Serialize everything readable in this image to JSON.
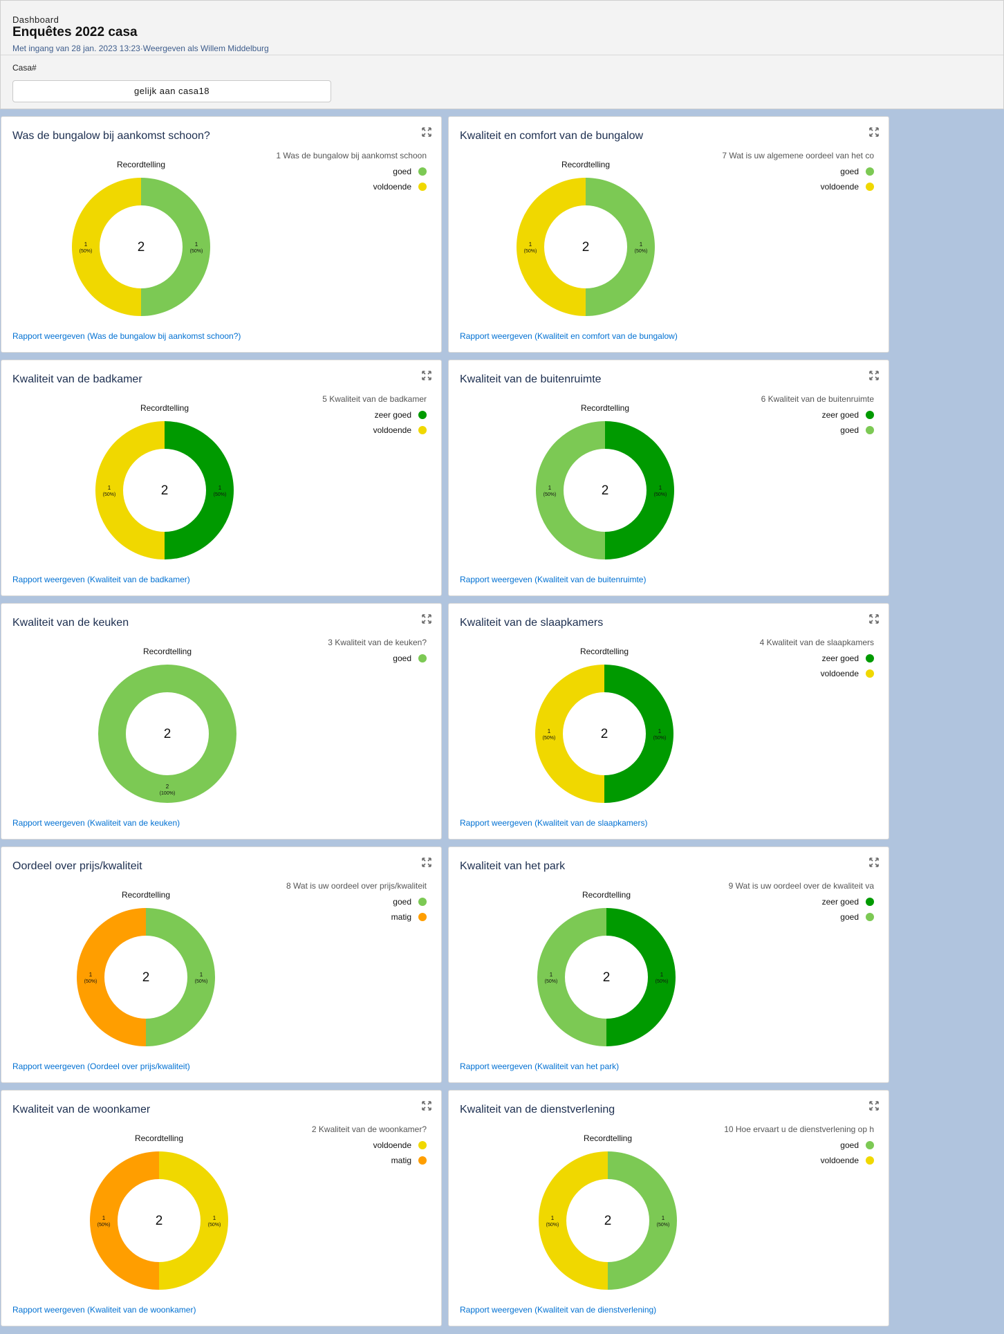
{
  "header": {
    "eyebrow": "Dashboard",
    "title": "Enquêtes 2022 casa",
    "subtitle": "Met ingang van 28 jan. 2023 13:23·Weergeven als Willem Middelburg"
  },
  "filter": {
    "label": "Casa#",
    "value": "gelijk aan casa18"
  },
  "colors": {
    "zeer goed": "#009a00",
    "goed": "#7cc954",
    "voldoende": "#f0d800",
    "matig": "#ff9e00"
  },
  "chart_data": [
    {
      "type": "donut",
      "title": "Was de bungalow bij aankomst schoon?",
      "measure": "Recordtelling",
      "legend_title": "1 Was de bungalow bij aankomst schoon",
      "total": "2",
      "slices": [
        {
          "name": "goed",
          "value": 1,
          "label": "1",
          "pct": "(50%)"
        },
        {
          "name": "voldoende",
          "value": 1,
          "label": "1",
          "pct": "(50%)"
        }
      ],
      "link": "Rapport weergeven (Was de bungalow bij aankomst schoon?)"
    },
    {
      "type": "donut",
      "title": "Kwaliteit en comfort van de bungalow",
      "measure": "Recordtelling",
      "legend_title": "7 Wat is uw  algemene oordeel van het co",
      "total": "2",
      "slices": [
        {
          "name": "goed",
          "value": 1,
          "label": "1",
          "pct": "(50%)"
        },
        {
          "name": "voldoende",
          "value": 1,
          "label": "1",
          "pct": "(50%)"
        }
      ],
      "link": "Rapport weergeven (Kwaliteit en comfort van de bungalow)"
    },
    {
      "type": "donut",
      "title": "Kwaliteit van de badkamer",
      "measure": "Recordtelling",
      "legend_title": "5 Kwaliteit van de badkamer",
      "total": "2",
      "slices": [
        {
          "name": "zeer goed",
          "value": 1,
          "label": "1",
          "pct": "(50%)"
        },
        {
          "name": "voldoende",
          "value": 1,
          "label": "1",
          "pct": "(50%)"
        }
      ],
      "link": "Rapport weergeven (Kwaliteit van de badkamer)"
    },
    {
      "type": "donut",
      "title": "Kwaliteit van de buitenruimte",
      "measure": "Recordtelling",
      "legend_title": "6 Kwaliteit van de buitenruimte",
      "total": "2",
      "slices": [
        {
          "name": "zeer goed",
          "value": 1,
          "label": "1",
          "pct": "(50%)"
        },
        {
          "name": "goed",
          "value": 1,
          "label": "1",
          "pct": "(50%)"
        }
      ],
      "link": "Rapport weergeven (Kwaliteit van de buitenruimte)"
    },
    {
      "type": "donut",
      "title": "Kwaliteit van de keuken",
      "measure": "Recordtelling",
      "legend_title": "3 Kwaliteit van de keuken?",
      "total": "2",
      "slices": [
        {
          "name": "goed",
          "value": 2,
          "label": "2",
          "pct": "(100%)"
        }
      ],
      "link": "Rapport weergeven (Kwaliteit van de keuken)"
    },
    {
      "type": "donut",
      "title": "Kwaliteit van de slaapkamers",
      "measure": "Recordtelling",
      "legend_title": "4 Kwaliteit van de slaapkamers",
      "total": "2",
      "slices": [
        {
          "name": "zeer goed",
          "value": 1,
          "label": "1",
          "pct": "(50%)"
        },
        {
          "name": "voldoende",
          "value": 1,
          "label": "1",
          "pct": "(50%)"
        }
      ],
      "link": "Rapport weergeven (Kwaliteit van de slaapkamers)"
    },
    {
      "type": "donut",
      "title": "Oordeel over prijs/kwaliteit",
      "measure": "Recordtelling",
      "legend_title": "8 Wat is uw oordeel over prijs/kwaliteit",
      "total": "2",
      "slices": [
        {
          "name": "goed",
          "value": 1,
          "label": "1",
          "pct": "(50%)"
        },
        {
          "name": "matig",
          "value": 1,
          "label": "1",
          "pct": "(50%)"
        }
      ],
      "link": "Rapport weergeven (Oordeel over prijs/kwaliteit)"
    },
    {
      "type": "donut",
      "title": "Kwaliteit van het park",
      "measure": "Recordtelling",
      "legend_title": "9 Wat is uw oordeel over de kwaliteit va",
      "total": "2",
      "slices": [
        {
          "name": "zeer goed",
          "value": 1,
          "label": "1",
          "pct": "(50%)"
        },
        {
          "name": "goed",
          "value": 1,
          "label": "1",
          "pct": "(50%)"
        }
      ],
      "link": "Rapport weergeven (Kwaliteit van het park)"
    },
    {
      "type": "donut",
      "title": "Kwaliteit van de woonkamer",
      "measure": "Recordtelling",
      "legend_title": "2 Kwaliteit van de woonkamer?",
      "total": "2",
      "slices": [
        {
          "name": "voldoende",
          "value": 1,
          "label": "1",
          "pct": "(50%)"
        },
        {
          "name": "matig",
          "value": 1,
          "label": "1",
          "pct": "(50%)"
        }
      ],
      "link": "Rapport weergeven (Kwaliteit van de woonkamer)"
    },
    {
      "type": "donut",
      "title": "Kwaliteit van de dienstverlening",
      "measure": "Recordtelling",
      "legend_title": "10 Hoe ervaart u de dienstverlening op h",
      "total": "2",
      "slices": [
        {
          "name": "goed",
          "value": 1,
          "label": "1",
          "pct": "(50%)"
        },
        {
          "name": "voldoende",
          "value": 1,
          "label": "1",
          "pct": "(50%)"
        }
      ],
      "link": "Rapport weergeven (Kwaliteit van de dienstverlening)"
    }
  ]
}
